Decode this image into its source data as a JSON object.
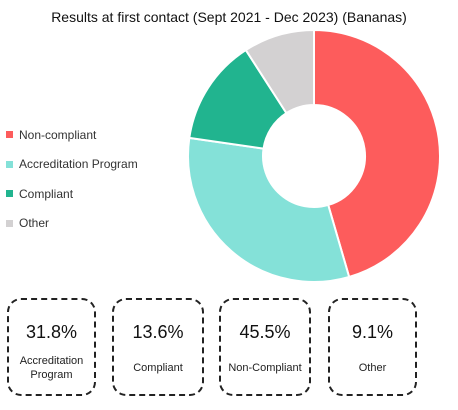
{
  "chart_data": {
    "type": "pie",
    "title": "Results at first contact (Sept 2021 - Dec 2023) (Bananas)",
    "categories": [
      "Non-compliant",
      "Accreditation Program",
      "Compliant",
      "Other"
    ],
    "values": [
      45.5,
      31.8,
      13.6,
      9.1
    ],
    "colors": [
      "#fd5c5c",
      "#84e1d8",
      "#21b48f",
      "#d3d1d2"
    ],
    "legend_position": "left",
    "donut": true
  },
  "cards": [
    {
      "value": "31.8%",
      "label": "Accreditation Program"
    },
    {
      "value": "13.6%",
      "label": "Compliant"
    },
    {
      "value": "45.5%",
      "label": "Non-Compliant"
    },
    {
      "value": "9.1%",
      "label": "Other"
    }
  ]
}
